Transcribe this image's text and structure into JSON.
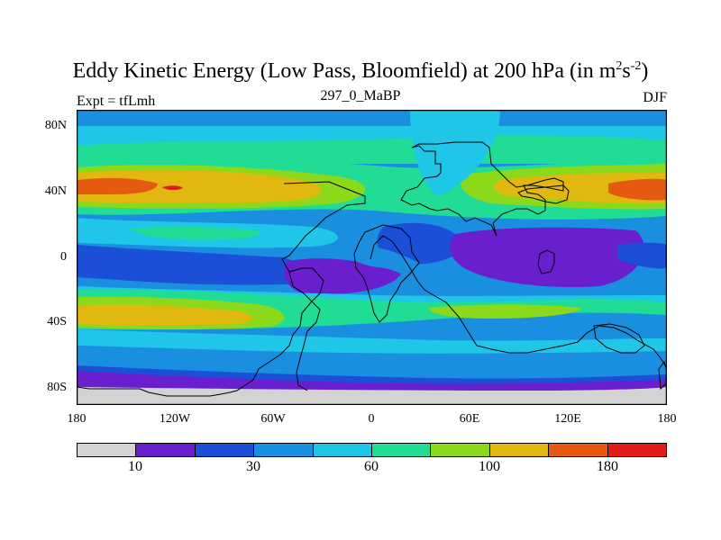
{
  "title": {
    "main": "Eddy Kinetic Energy (Low Pass, Bloomfield) at 200 hPa (in m",
    "sup1": "2",
    "mid": "s",
    "sup2": "-2",
    "end": ")"
  },
  "subtitle": {
    "left": "Expt = tfLmh",
    "center": "297_0_MaBP",
    "right": "DJF"
  },
  "axes": {
    "y_ticks": [
      "80N",
      "40N",
      "0",
      "40S",
      "80S"
    ],
    "x_ticks": [
      "180",
      "120W",
      "60W",
      "0",
      "60E",
      "120E",
      "180"
    ]
  },
  "colorbar": {
    "colors": [
      "#d3d3d3",
      "#6a1fcf",
      "#1b4fd8",
      "#1a8fe0",
      "#1fc6e8",
      "#20dc94",
      "#8cd91c",
      "#e0b80f",
      "#e55a10",
      "#e31a1a"
    ],
    "labels": [
      "10",
      "30",
      "60",
      "100",
      "180"
    ]
  },
  "chart_data": {
    "type": "heatmap",
    "title": "Eddy Kinetic Energy (Low Pass, Bloomfield) at 200 hPa (in m2s-2)",
    "x_range": [
      -180,
      180
    ],
    "y_range": [
      -90,
      90
    ],
    "levels": [
      10,
      30,
      60,
      100,
      180
    ]
  }
}
